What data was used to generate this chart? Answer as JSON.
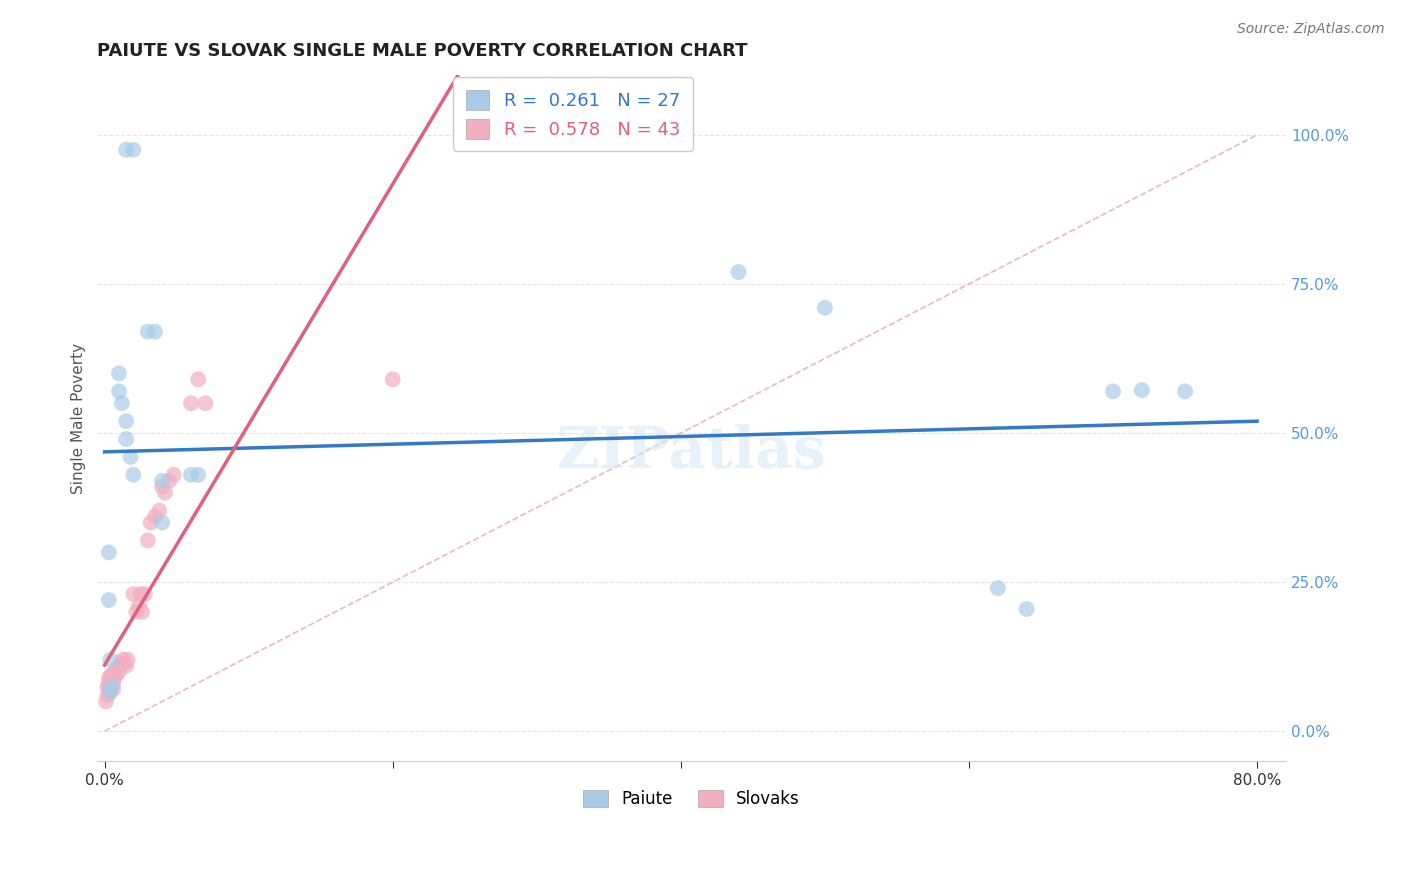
{
  "title": "PAIUTE VS SLOVAK SINGLE MALE POVERTY CORRELATION CHART",
  "source": "Source: ZipAtlas.com",
  "ylabel": "Single Male Poverty",
  "xlim": [
    -0.005,
    0.82
  ],
  "ylim": [
    -0.05,
    1.1
  ],
  "ytick_values": [
    0.0,
    0.25,
    0.5,
    0.75,
    1.0
  ],
  "xtick_values": [
    0.0,
    0.2,
    0.4,
    0.6,
    0.8
  ],
  "legend_blue_r": "0.261",
  "legend_blue_n": "27",
  "legend_pink_r": "0.578",
  "legend_pink_n": "43",
  "blue_scatter_color": "#a8cce8",
  "pink_scatter_color": "#f2afc0",
  "trend_blue_color": "#3478c8",
  "trend_pink_color": "#e06080",
  "diagonal_color": "#e8b0bc",
  "background_color": "#ffffff",
  "grid_color": "#e5e5e5",
  "ytick_color": "#5599dd",
  "xtick_color": "#333333",
  "paiute_x": [
    0.015,
    0.02,
    0.01,
    0.01,
    0.012,
    0.015,
    0.015,
    0.018,
    0.02,
    0.03,
    0.035,
    0.04,
    0.04,
    0.06,
    0.065,
    0.003,
    0.003,
    0.004,
    0.004,
    0.005,
    0.44,
    0.5,
    0.62,
    0.64,
    0.7,
    0.72,
    0.75
  ],
  "paiute_y": [
    0.975,
    0.975,
    0.6,
    0.57,
    0.55,
    0.52,
    0.49,
    0.46,
    0.43,
    0.67,
    0.67,
    0.42,
    0.35,
    0.43,
    0.43,
    0.3,
    0.22,
    0.12,
    0.065,
    0.075,
    0.77,
    0.71,
    0.24,
    0.205,
    0.57,
    0.572,
    0.57
  ],
  "slovak_x": [
    0.001,
    0.002,
    0.002,
    0.003,
    0.003,
    0.003,
    0.004,
    0.004,
    0.004,
    0.005,
    0.005,
    0.006,
    0.006,
    0.006,
    0.007,
    0.007,
    0.008,
    0.01,
    0.01,
    0.011,
    0.012,
    0.013,
    0.014,
    0.015,
    0.016,
    0.02,
    0.022,
    0.024,
    0.025,
    0.026,
    0.028,
    0.03,
    0.032,
    0.035,
    0.038,
    0.04,
    0.042,
    0.045,
    0.048,
    0.06,
    0.065,
    0.07,
    0.2
  ],
  "slovak_y": [
    0.05,
    0.06,
    0.075,
    0.07,
    0.08,
    0.09,
    0.07,
    0.08,
    0.085,
    0.09,
    0.095,
    0.07,
    0.08,
    0.095,
    0.09,
    0.1,
    0.095,
    0.1,
    0.11,
    0.11,
    0.115,
    0.12,
    0.115,
    0.11,
    0.12,
    0.23,
    0.2,
    0.21,
    0.23,
    0.2,
    0.23,
    0.32,
    0.35,
    0.36,
    0.37,
    0.41,
    0.4,
    0.42,
    0.43,
    0.55,
    0.59,
    0.55,
    0.59
  ]
}
